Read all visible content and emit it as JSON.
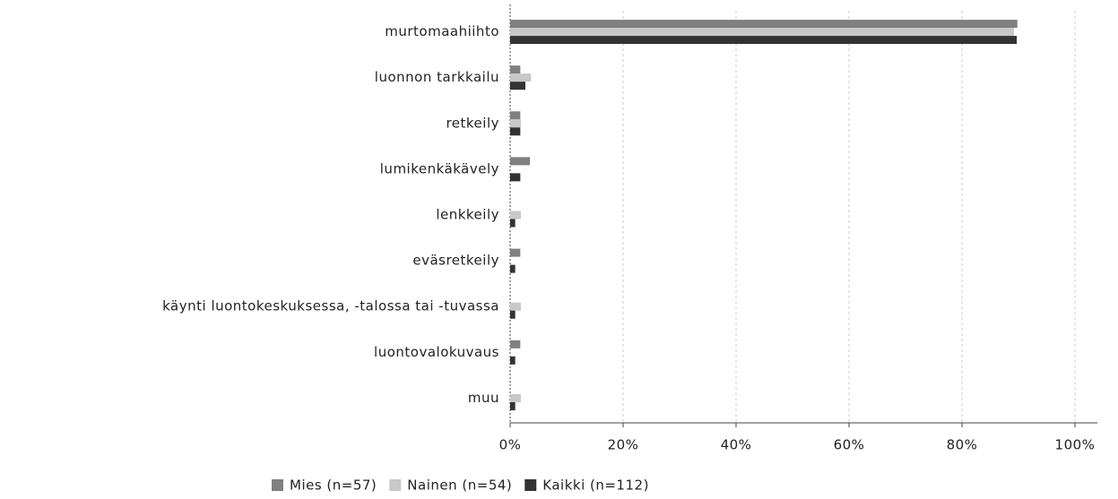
{
  "chart_data": {
    "type": "hbar",
    "categories": [
      "murtomaahiihto",
      "luonnon tarkkailu",
      "retkeily",
      "lumikenkäkävely",
      "lenkkeily",
      "eväsretkeily",
      "käynti luontokeskuksessa, -talossa tai -tuvassa",
      "luontovalokuvaus",
      "muu"
    ],
    "series": [
      {
        "name": "Mies (n=57)",
        "color": "#808080",
        "values": [
          89.8,
          1.8,
          1.8,
          3.5,
          0,
          1.8,
          0,
          1.8,
          0
        ]
      },
      {
        "name": "Nainen (n=54)",
        "color": "#c8c8c8",
        "values": [
          89.2,
          3.7,
          1.9,
          0,
          1.9,
          0,
          1.9,
          0,
          1.9
        ]
      },
      {
        "name": "Kaikki (n=112)",
        "color": "#333333",
        "values": [
          89.7,
          2.7,
          1.8,
          1.8,
          0.9,
          0.9,
          0.9,
          0.9,
          0.9
        ]
      }
    ],
    "xlim": [
      0,
      100
    ],
    "xticks": [
      {
        "value": 0,
        "label": "0%"
      },
      {
        "value": 20,
        "label": "20%"
      },
      {
        "value": 40,
        "label": "40%"
      },
      {
        "value": 60,
        "label": "60%"
      },
      {
        "value": 80,
        "label": "80%"
      },
      {
        "value": 100,
        "label": "100%"
      }
    ],
    "grid": true,
    "legend": "bottom"
  }
}
